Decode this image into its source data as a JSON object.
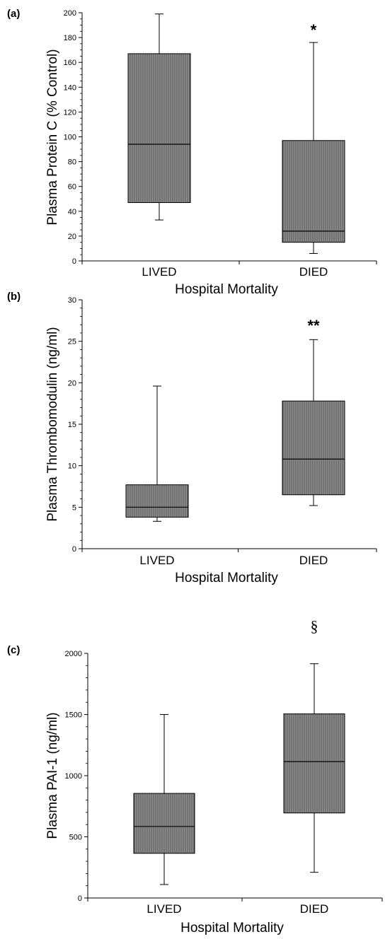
{
  "colors": {
    "box_fill": "#8c8c8c",
    "box_stripe": "#5a5a5a",
    "line": "#000000"
  },
  "chart_data": [
    {
      "type": "box",
      "panel_label": "(a)",
      "xlabel": "Hospital Mortality",
      "ylabel": "Plasma Protein C (% Control)",
      "ylim": [
        0,
        200
      ],
      "yticks": [
        0,
        20,
        40,
        60,
        80,
        100,
        120,
        140,
        160,
        180,
        200
      ],
      "ytick_labels": [
        "0",
        "20",
        "40",
        "60",
        "80",
        "100",
        "120",
        "140",
        "160",
        "180",
        "200"
      ],
      "categories": [
        "LIVED",
        "DIED"
      ],
      "boxes": [
        {
          "category": "LIVED",
          "min": 33,
          "q1": 47,
          "median": 94,
          "q3": 167,
          "max": 199,
          "annotation": ""
        },
        {
          "category": "DIED",
          "min": 6,
          "q1": 15,
          "median": 24,
          "q3": 97,
          "max": 176,
          "annotation": "*"
        }
      ]
    },
    {
      "type": "box",
      "panel_label": "(b)",
      "xlabel": "Hospital Mortality",
      "ylabel": "Plasma Thrombomodulin (ng/ml)",
      "ylim": [
        0,
        30
      ],
      "yticks": [
        0,
        5,
        10,
        15,
        20,
        25,
        30
      ],
      "ytick_labels": [
        "0",
        "5",
        "10",
        "15",
        "20",
        "25",
        "30"
      ],
      "categories": [
        "LIVED",
        "DIED"
      ],
      "boxes": [
        {
          "category": "LIVED",
          "min": 3.3,
          "q1": 3.8,
          "median": 5.0,
          "q3": 7.7,
          "max": 19.6,
          "annotation": ""
        },
        {
          "category": "DIED",
          "min": 5.2,
          "q1": 6.5,
          "median": 10.8,
          "q3": 17.8,
          "max": 25.2,
          "annotation": "**"
        }
      ]
    },
    {
      "type": "box",
      "panel_label": "(c)",
      "xlabel": "Hospital Mortality",
      "ylabel": "Plasma PAI-1 (ng/ml)",
      "ylim": [
        0,
        2000
      ],
      "yticks": [
        0,
        500,
        1000,
        1500,
        2000
      ],
      "ytick_labels": [
        "0",
        "500",
        "1000",
        "1500",
        "2000"
      ],
      "categories": [
        "LIVED",
        "DIED"
      ],
      "boxes": [
        {
          "category": "LIVED",
          "min": 110,
          "q1": 365,
          "median": 585,
          "q3": 855,
          "max": 1500,
          "annotation": ""
        },
        {
          "category": "DIED",
          "min": 210,
          "q1": 695,
          "median": 1115,
          "q3": 1505,
          "max": 1915,
          "annotation": "§"
        }
      ]
    }
  ]
}
